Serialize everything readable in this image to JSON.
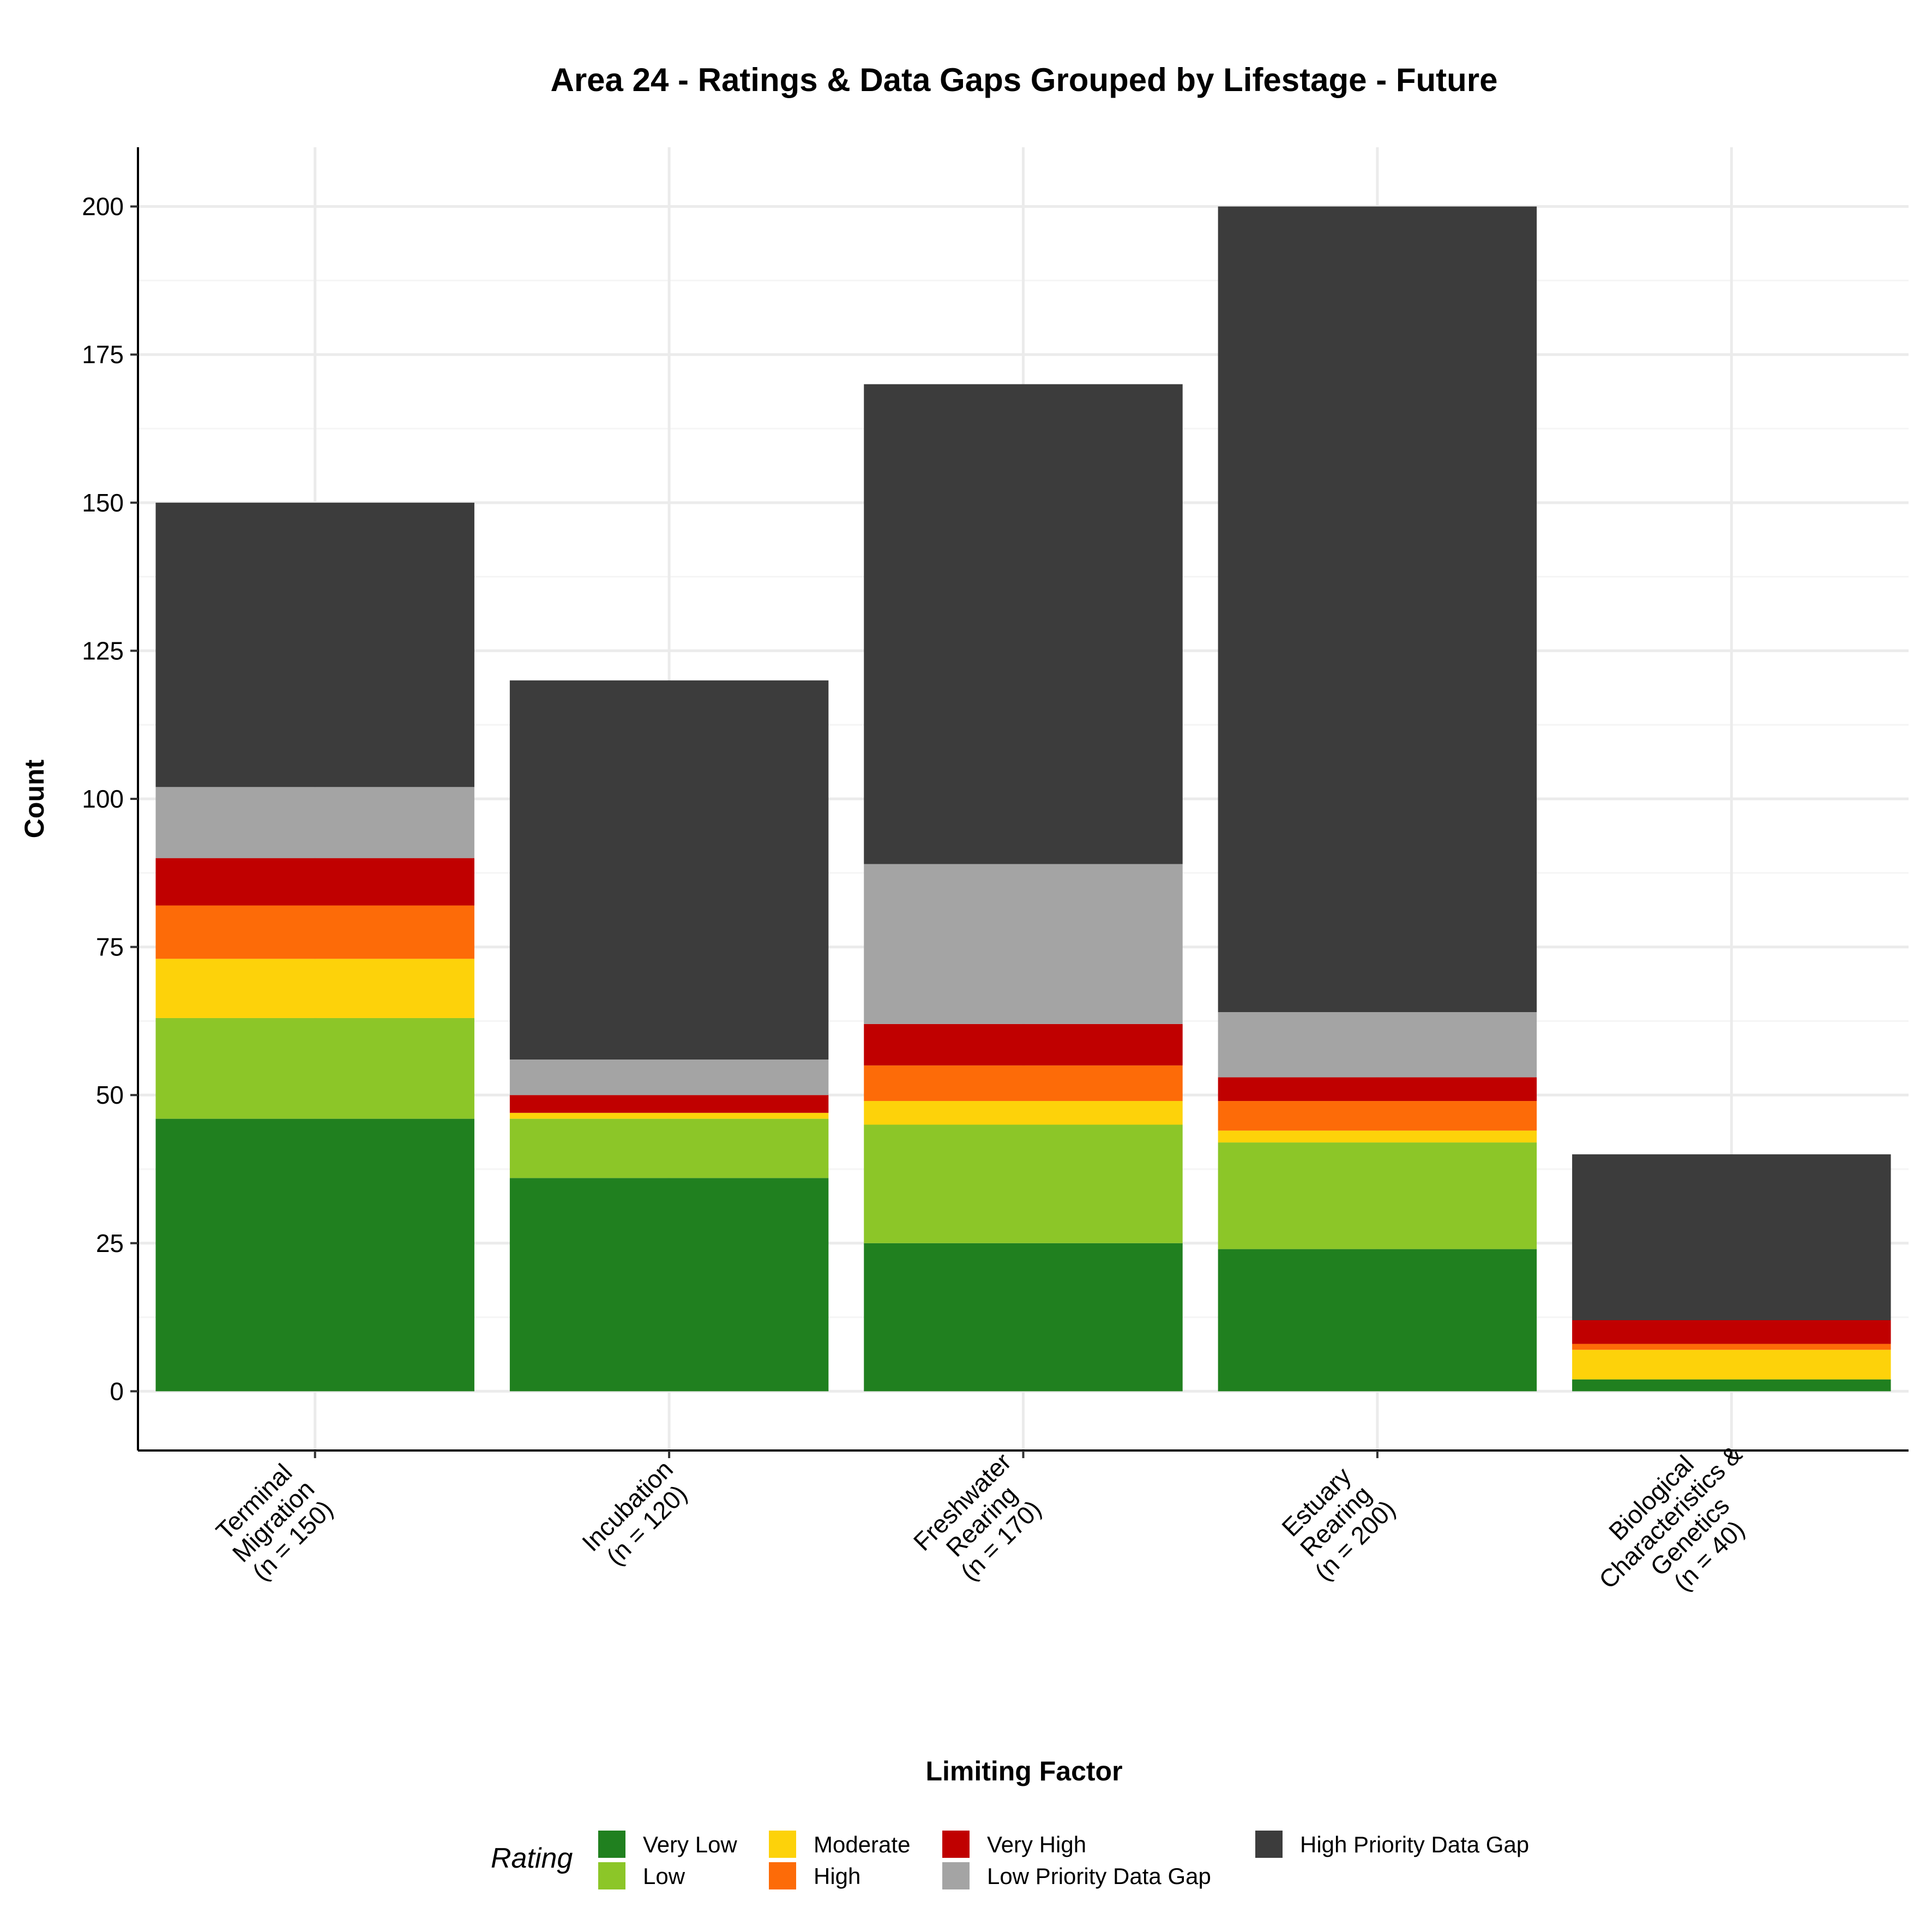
{
  "chart_data": {
    "type": "bar",
    "stacked": true,
    "title": "Area 24 - Ratings & Data Gaps Grouped by Lifestage - Future",
    "xlabel": "Limiting Factor",
    "ylabel": "Count",
    "ylim": [
      -10,
      210
    ],
    "yticks": [
      0,
      25,
      50,
      75,
      100,
      125,
      150,
      175,
      200
    ],
    "grid": true,
    "categories": [
      [
        "Terminal",
        "Migration",
        "(n = 150)"
      ],
      [
        "Incubation",
        "(n = 120)"
      ],
      [
        "Freshwater",
        "Rearing",
        "(n = 170)"
      ],
      [
        "Estuary",
        "Rearing",
        "(n = 200)"
      ],
      [
        "Biological",
        "Characteristics &",
        "Genetics",
        "(n = 40)"
      ]
    ],
    "series": [
      {
        "name": "Very Low",
        "color": "#20801f",
        "values": [
          46,
          36,
          25,
          24,
          2
        ]
      },
      {
        "name": "Low",
        "color": "#8cc628",
        "values": [
          17,
          10,
          20,
          18,
          0
        ]
      },
      {
        "name": "Moderate",
        "color": "#fdd20a",
        "values": [
          10,
          1,
          4,
          2,
          5
        ]
      },
      {
        "name": "High",
        "color": "#fd6b08",
        "values": [
          9,
          0,
          6,
          5,
          1
        ]
      },
      {
        "name": "Very High",
        "color": "#c00000",
        "values": [
          8,
          3,
          7,
          4,
          4
        ]
      },
      {
        "name": "Low Priority Data Gap",
        "color": "#a4a4a4",
        "values": [
          12,
          6,
          27,
          11,
          0
        ]
      },
      {
        "name": "High Priority Data Gap",
        "color": "#3c3c3c",
        "values": [
          48,
          64,
          81,
          136,
          28
        ]
      }
    ],
    "legend": {
      "title": "Rating",
      "position": "bottom"
    }
  }
}
